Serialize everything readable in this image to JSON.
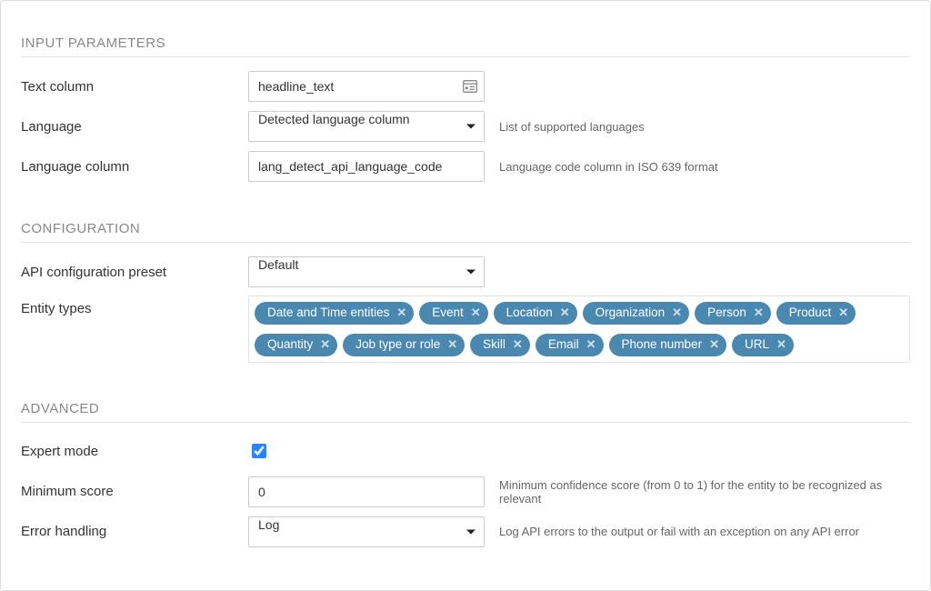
{
  "colors": {
    "tag_bg": "#4a88b0",
    "tag_text": "#ffffff",
    "tag_remove": "#cfe1ec",
    "border": "#dcdcdc",
    "section_line": "#e2e2e2",
    "section_title": "#888888",
    "hint_text": "#666666",
    "checkbox_accent": "#2684ff"
  },
  "sections": {
    "input_params": {
      "title": "INPUT PARAMETERS",
      "text_column": {
        "label": "Text column",
        "value": "headline_text"
      },
      "language": {
        "label": "Language",
        "value": "Detected language column",
        "hint": "List of supported languages"
      },
      "language_column": {
        "label": "Language column",
        "value": "lang_detect_api_language_code",
        "hint": "Language code column in ISO 639 format"
      }
    },
    "configuration": {
      "title": "CONFIGURATION",
      "api_preset": {
        "label": "API configuration preset",
        "value": "Default"
      },
      "entity_types": {
        "label": "Entity types",
        "tags": [
          "Date and Time entities",
          "Event",
          "Location",
          "Organization",
          "Person",
          "Product",
          "Quantity",
          "Job type or role",
          "Skill",
          "Email",
          "Phone number",
          "URL"
        ]
      }
    },
    "advanced": {
      "title": "ADVANCED",
      "expert_mode": {
        "label": "Expert mode",
        "checked": true
      },
      "min_score": {
        "label": "Minimum score",
        "value": "0",
        "hint": "Minimum confidence score (from 0 to 1) for the entity to be recognized as relevant"
      },
      "error_handling": {
        "label": "Error handling",
        "value": "Log",
        "hint": "Log API errors to the output or fail with an exception on any API error"
      }
    }
  }
}
